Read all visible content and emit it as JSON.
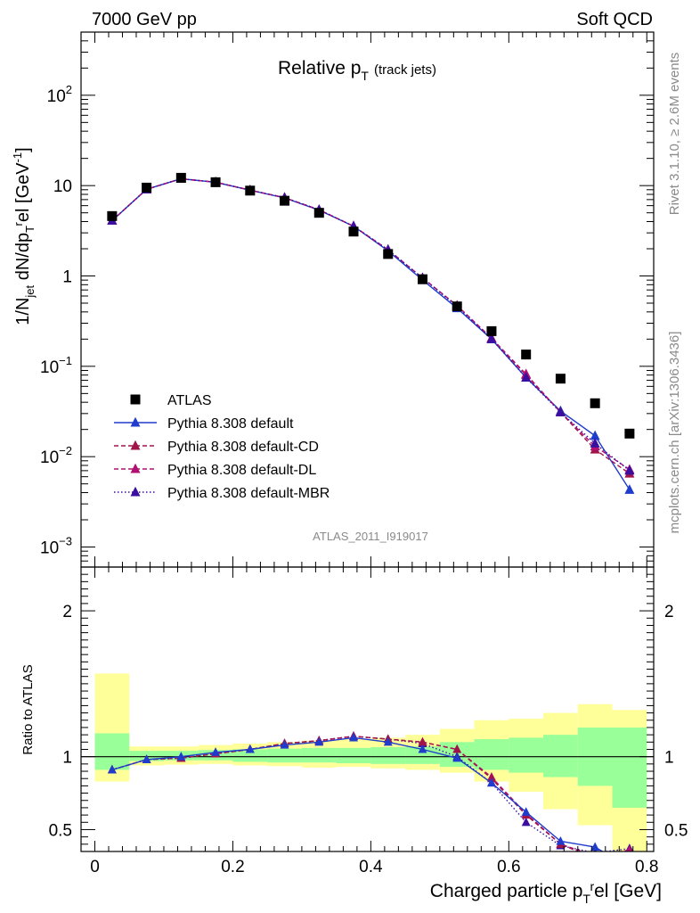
{
  "header": {
    "left_label": "7000 GeV pp",
    "right_label": "Soft QCD"
  },
  "side": {
    "rivet_label": "Rivet 3.1.10, ≥ 2.6M events",
    "source_label": "mcplots.cern.ch [arXiv:1306.3436]"
  },
  "chart_data": [
    {
      "type": "line",
      "title_main": "Relative p",
      "title_sub": "T",
      "title_extra": "(track jets)",
      "analysis_label": "ATLAS_2011_I919017",
      "ylabel": "1/N",
      "ylabel_sub_jet": "jet",
      "ylabel_mid": " dN/dp",
      "ylabel_sub_t": "T",
      "ylabel_sup_r": "r",
      "ylabel_end": "el [GeV",
      "ylabel_sup_unit": "-1",
      "ylabel_close": "]",
      "yscale": "log",
      "ylim": [
        0.0006,
        500
      ],
      "xlim": [
        -0.02,
        0.81
      ],
      "y_tick_labels": [
        {
          "value": 0.001,
          "base": "10",
          "exp": "−3"
        },
        {
          "value": 0.01,
          "base": "10",
          "exp": "−2"
        },
        {
          "value": 0.1,
          "base": "10",
          "exp": "−1"
        },
        {
          "value": 1,
          "base": "1",
          "exp": ""
        },
        {
          "value": 10,
          "base": "10",
          "exp": ""
        },
        {
          "value": 100,
          "base": "10",
          "exp": "2"
        }
      ],
      "legend_position": "bottom-left",
      "x": [
        0.025,
        0.075,
        0.125,
        0.175,
        0.225,
        0.275,
        0.325,
        0.375,
        0.425,
        0.475,
        0.525,
        0.575,
        0.625,
        0.675,
        0.725,
        0.775
      ],
      "series": [
        {
          "name": "ATLAS",
          "color": "#000000",
          "marker": "square",
          "line": "none",
          "values": [
            4.6,
            9.5,
            12.2,
            10.9,
            8.8,
            6.8,
            5.0,
            3.1,
            1.75,
            0.92,
            0.46,
            0.245,
            0.135,
            0.073,
            0.039,
            0.018
          ]
        },
        {
          "name": "Pythia 8.308 default",
          "color": "#1f3ccc",
          "marker": "triangle",
          "line": "solid",
          "values": [
            4.1,
            9.1,
            11.9,
            10.9,
            8.9,
            7.3,
            5.35,
            3.55,
            1.9,
            0.9,
            0.44,
            0.2,
            0.075,
            0.032,
            0.017,
            0.0043
          ]
        },
        {
          "name": "Pythia 8.308 default-CD",
          "color": "#a0144a",
          "marker": "triangle",
          "line": "dashed",
          "values": [
            4.1,
            9.1,
            11.9,
            10.9,
            8.9,
            7.35,
            5.4,
            3.55,
            1.95,
            0.95,
            0.47,
            0.205,
            0.08,
            0.031,
            0.012,
            0.0065
          ]
        },
        {
          "name": "Pythia 8.308 default-DL",
          "color": "#b01070",
          "marker": "triangle",
          "line": "dashed",
          "values": [
            4.1,
            9.1,
            11.9,
            10.9,
            8.9,
            7.35,
            5.4,
            3.55,
            1.95,
            0.95,
            0.47,
            0.205,
            0.082,
            0.031,
            0.013,
            0.0072
          ]
        },
        {
          "name": "Pythia 8.308 default-MBR",
          "color": "#3a0fa0",
          "marker": "triangle",
          "line": "dotted",
          "values": [
            4.1,
            9.1,
            11.9,
            10.9,
            8.9,
            7.35,
            5.4,
            3.55,
            1.95,
            0.95,
            0.46,
            0.2,
            0.075,
            0.031,
            0.014,
            0.007
          ]
        }
      ]
    },
    {
      "type": "line",
      "ylabel": "Ratio to ATLAS",
      "xlabel_start": "Charged particle p",
      "xlabel_sub": "T",
      "xlabel_sup": "r",
      "xlabel_end": "el [GeV]",
      "ylim": [
        0.35,
        2.3
      ],
      "xlim": [
        -0.02,
        0.81
      ],
      "y_tick_labels": [
        "0.5",
        "1",
        "2"
      ],
      "y_tick_values": [
        0.5,
        1,
        2
      ],
      "x_tick_labels": [
        "0",
        "0.2",
        "0.4",
        "0.6",
        "0.8"
      ],
      "x_tick_values": [
        0,
        0.2,
        0.4,
        0.6,
        0.8
      ],
      "x": [
        0.025,
        0.075,
        0.125,
        0.175,
        0.225,
        0.275,
        0.325,
        0.375,
        0.425,
        0.475,
        0.525,
        0.575,
        0.625,
        0.675,
        0.725,
        0.775
      ],
      "bin_edges": [
        0.0,
        0.05,
        0.1,
        0.15,
        0.2,
        0.25,
        0.3,
        0.35,
        0.4,
        0.45,
        0.5,
        0.55,
        0.6,
        0.65,
        0.7,
        0.75,
        0.8
      ],
      "band_outer_color": "#ffff99",
      "band_inner_color": "#99ff99",
      "band_outer": [
        [
          0.83,
          1.57
        ],
        [
          0.94,
          1.07
        ],
        [
          0.945,
          1.07
        ],
        [
          0.95,
          1.08
        ],
        [
          0.94,
          1.09
        ],
        [
          0.935,
          1.1
        ],
        [
          0.925,
          1.11
        ],
        [
          0.93,
          1.12
        ],
        [
          0.92,
          1.13
        ],
        [
          0.91,
          1.15
        ],
        [
          0.89,
          1.19
        ],
        [
          0.83,
          1.25
        ],
        [
          0.76,
          1.26
        ],
        [
          0.64,
          1.3
        ],
        [
          0.53,
          1.36
        ],
        [
          0.35,
          1.32
        ]
      ],
      "band_inner": [
        [
          0.91,
          1.16
        ],
        [
          0.97,
          1.04
        ],
        [
          0.975,
          1.04
        ],
        [
          0.975,
          1.045
        ],
        [
          0.965,
          1.05
        ],
        [
          0.96,
          1.055
        ],
        [
          0.96,
          1.06
        ],
        [
          0.955,
          1.06
        ],
        [
          0.95,
          1.065
        ],
        [
          0.95,
          1.07
        ],
        [
          0.93,
          1.1
        ],
        [
          0.91,
          1.12
        ],
        [
          0.89,
          1.13
        ],
        [
          0.86,
          1.15
        ],
        [
          0.8,
          1.2
        ],
        [
          0.65,
          1.2
        ]
      ],
      "series": [
        {
          "name": "Pythia 8.308 default",
          "color": "#1f3ccc",
          "values": [
            0.91,
            0.98,
            1.0,
            1.03,
            1.05,
            1.08,
            1.1,
            1.13,
            1.1,
            1.05,
            0.99,
            0.82,
            0.62,
            0.42,
            0.38,
            0.24
          ]
        },
        {
          "name": "Pythia 8.308 default-CD",
          "color": "#a0144a",
          "values": [
            0.91,
            0.98,
            0.99,
            1.02,
            1.05,
            1.09,
            1.11,
            1.14,
            1.12,
            1.1,
            1.05,
            0.85,
            0.6,
            0.4,
            0.3,
            0.32
          ]
        },
        {
          "name": "Pythia 8.308 default-DL",
          "color": "#b01070",
          "values": [
            0.91,
            0.98,
            0.99,
            1.02,
            1.05,
            1.09,
            1.11,
            1.14,
            1.12,
            1.1,
            1.05,
            0.86,
            0.61,
            0.4,
            0.32,
            0.36
          ]
        },
        {
          "name": "Pythia 8.308 default-MBR",
          "color": "#3a0fa0",
          "values": [
            0.91,
            0.98,
            0.99,
            1.02,
            1.05,
            1.09,
            1.11,
            1.14,
            1.12,
            1.09,
            1.0,
            0.82,
            0.55,
            0.39,
            0.34,
            0.37
          ]
        }
      ]
    }
  ]
}
